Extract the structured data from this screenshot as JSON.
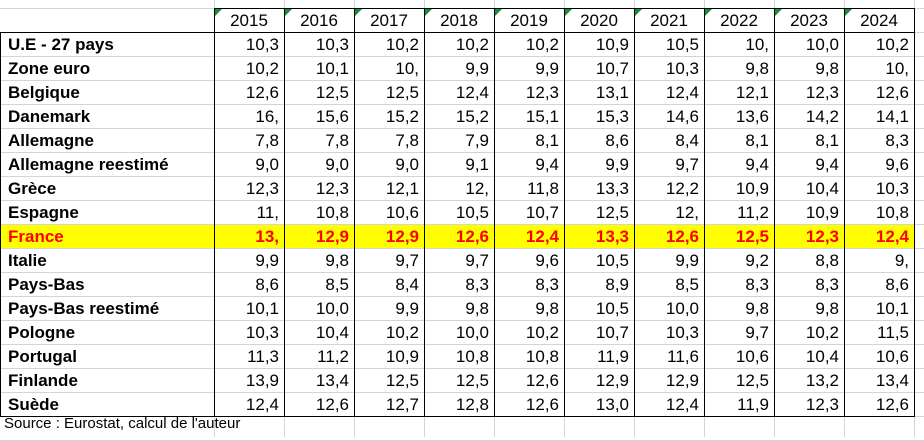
{
  "table": {
    "years": [
      "2015",
      "2016",
      "2017",
      "2018",
      "2019",
      "2020",
      "2021",
      "2022",
      "2023",
      "2024"
    ],
    "rows": [
      {
        "label": "U.E - 27 pays",
        "values": [
          "10,3",
          "10,3",
          "10,2",
          "10,2",
          "10,2",
          "10,9",
          "10,5",
          "10,",
          "10,0",
          "10,2"
        ]
      },
      {
        "label": "Zone euro",
        "values": [
          "10,2",
          "10,1",
          "10,",
          "9,9",
          "9,9",
          "10,7",
          "10,3",
          "9,8",
          "9,8",
          "10,"
        ]
      },
      {
        "label": "Belgique",
        "values": [
          "12,6",
          "12,5",
          "12,5",
          "12,4",
          "12,3",
          "13,1",
          "12,4",
          "12,1",
          "12,3",
          "12,6"
        ]
      },
      {
        "label": "Danemark",
        "values": [
          "16,",
          "15,6",
          "15,2",
          "15,2",
          "15,1",
          "15,3",
          "14,6",
          "13,6",
          "14,2",
          "14,1"
        ]
      },
      {
        "label": "Allemagne",
        "values": [
          "7,8",
          "7,8",
          "7,8",
          "7,9",
          "8,1",
          "8,6",
          "8,4",
          "8,1",
          "8,1",
          "8,3"
        ]
      },
      {
        "label": "Allemagne reestimé",
        "values": [
          "9,0",
          "9,0",
          "9,0",
          "9,1",
          "9,4",
          "9,9",
          "9,7",
          "9,4",
          "9,4",
          "9,6"
        ]
      },
      {
        "label": "Grèce",
        "values": [
          "12,3",
          "12,3",
          "12,1",
          "12,",
          "11,8",
          "13,3",
          "12,2",
          "10,9",
          "10,4",
          "10,3"
        ]
      },
      {
        "label": "Espagne",
        "values": [
          "11,",
          "10,8",
          "10,6",
          "10,5",
          "10,7",
          "12,5",
          "12,",
          "11,2",
          "10,9",
          "10,8"
        ]
      },
      {
        "label": "France",
        "values": [
          "13,",
          "12,9",
          "12,9",
          "12,6",
          "12,4",
          "13,3",
          "12,6",
          "12,5",
          "12,3",
          "12,4"
        ],
        "highlight": true
      },
      {
        "label": "Italie",
        "values": [
          "9,9",
          "9,8",
          "9,7",
          "9,7",
          "9,6",
          "10,5",
          "9,9",
          "9,2",
          "8,8",
          "9,"
        ]
      },
      {
        "label": "Pays-Bas",
        "values": [
          "8,6",
          "8,5",
          "8,4",
          "8,3",
          "8,3",
          "8,9",
          "8,5",
          "8,3",
          "8,3",
          "8,6"
        ]
      },
      {
        "label": "Pays-Bas reestimé",
        "values": [
          "10,1",
          "10,0",
          "9,9",
          "9,8",
          "9,8",
          "10,5",
          "10,0",
          "9,8",
          "9,8",
          "10,1"
        ]
      },
      {
        "label": "Pologne",
        "values": [
          "10,3",
          "10,4",
          "10,2",
          "10,0",
          "10,2",
          "10,7",
          "10,3",
          "9,7",
          "10,2",
          "11,5"
        ]
      },
      {
        "label": "Portugal",
        "values": [
          "11,3",
          "11,2",
          "10,9",
          "10,8",
          "10,8",
          "11,9",
          "11,6",
          "10,6",
          "10,4",
          "10,6"
        ]
      },
      {
        "label": "Finlande",
        "values": [
          "13,9",
          "13,4",
          "12,5",
          "12,5",
          "12,6",
          "12,9",
          "12,9",
          "12,5",
          "13,2",
          "13,4"
        ]
      },
      {
        "label": "Suède",
        "values": [
          "12,4",
          "12,6",
          "12,7",
          "12,8",
          "12,6",
          "13,0",
          "12,4",
          "11,9",
          "12,3",
          "12,6"
        ]
      }
    ]
  },
  "source": "Source : Eurostat, calcul de l'auteur",
  "colors": {
    "highlight_bg": "#ffff00",
    "highlight_text": "#ff0000",
    "grid": "#d4d4d4",
    "border": "#000000",
    "comment_marker": "#1a8a3c"
  }
}
